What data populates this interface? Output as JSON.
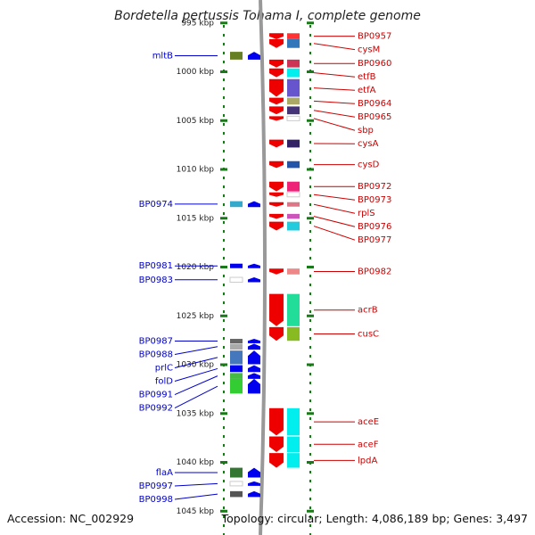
{
  "title": "Bordetella pertussis Tohama I, complete genome",
  "footer": {
    "accession": "Accession: NC_002929",
    "summary": "Topology: circular; Length: 4,086,189 bp; Genes: 3,497"
  },
  "colors": {
    "left_label": "#0000cc",
    "right_label": "#cc0000",
    "tick": "#1a7a1a",
    "backbone": "#999999"
  },
  "scale": {
    "unit": "kbp",
    "ticks": [
      {
        "kbp": 995,
        "label": "995 kbp"
      },
      {
        "kbp": 1000,
        "label": "1000 kbp"
      },
      {
        "kbp": 1005,
        "label": "1005 kbp"
      },
      {
        "kbp": 1010,
        "label": "1010 kbp"
      },
      {
        "kbp": 1015,
        "label": "1015 kbp"
      },
      {
        "kbp": 1020,
        "label": "1020 kbp"
      },
      {
        "kbp": 1025,
        "label": "1025 kbp"
      },
      {
        "kbp": 1030,
        "label": "1030 kbp"
      },
      {
        "kbp": 1035,
        "label": "1035 kbp"
      },
      {
        "kbp": 1040,
        "label": "1040 kbp"
      },
      {
        "kbp": 1045,
        "label": "1045 kbp"
      }
    ]
  },
  "left_genes": [
    {
      "name": "mltB",
      "start": 998.0,
      "end": 998.8,
      "color": "#667f22"
    },
    {
      "name": "BP0974",
      "start": 1013.3,
      "end": 1013.9,
      "color": "#33aacc"
    },
    {
      "name": "BP0981",
      "start": 1019.7,
      "end": 1020.0,
      "color": "#0000ee"
    },
    {
      "name": "BP0983",
      "start": 1021.1,
      "end": 1021.6,
      "color": "#ffffff"
    },
    {
      "name": "BP0987",
      "start": 1027.4,
      "end": 1027.7,
      "color": "#666666"
    },
    {
      "name": "BP0988",
      "start": 1027.9,
      "end": 1028.5,
      "color": "#aaaaaa"
    },
    {
      "name": "prlC",
      "start": 1028.6,
      "end": 1030.0,
      "color": "#4477bb"
    },
    {
      "name": "folD",
      "start": 1030.1,
      "end": 1030.8,
      "color": "#0000ee"
    },
    {
      "name": "BP0991",
      "start": 1030.9,
      "end": 1031.5,
      "color": "#44bb44"
    },
    {
      "name": "BP0992",
      "start": 1031.5,
      "end": 1033.0,
      "color": "#33cc33"
    },
    {
      "name": "flaA",
      "start": 1040.6,
      "end": 1041.6,
      "color": "#337733"
    },
    {
      "name": "BP0997",
      "start": 1042.0,
      "end": 1042.3,
      "color": "#ffffff"
    },
    {
      "name": "BP0998",
      "start": 1043.0,
      "end": 1043.6,
      "color": "#555555"
    }
  ],
  "right_genes": [
    {
      "name": "BP0957",
      "start": 996.1,
      "end": 996.7,
      "color": "#ff3333"
    },
    {
      "name": "cysM",
      "start": 996.7,
      "end": 997.6,
      "color": "#3377bb"
    },
    {
      "name": "BP0960",
      "start": 998.8,
      "end": 999.6,
      "color": "#cc3355"
    },
    {
      "name": "etfB",
      "start": 999.7,
      "end": 1000.6,
      "color": "#00eeee"
    },
    {
      "name": "etfA",
      "start": 1000.8,
      "end": 1002.6,
      "color": "#6655cc"
    },
    {
      "name": "BP0964",
      "start": 1002.7,
      "end": 1003.4,
      "color": "#aaaa66"
    },
    {
      "name": "BP0965",
      "start": 1003.6,
      "end": 1004.4,
      "color": "#443377"
    },
    {
      "name": "sbp",
      "start": 1004.6,
      "end": 1004.7,
      "color": "#ffffff"
    },
    {
      "name": "cysA",
      "start": 1007.0,
      "end": 1007.8,
      "color": "#332266"
    },
    {
      "name": "cysD",
      "start": 1009.2,
      "end": 1009.9,
      "color": "#2255aa"
    },
    {
      "name": "BP0972",
      "start": 1011.3,
      "end": 1012.3,
      "color": "#ee2277"
    },
    {
      "name": "BP0973",
      "start": 1012.4,
      "end": 1012.6,
      "color": "#ffffff"
    },
    {
      "name": "rplS",
      "start": 1013.4,
      "end": 1013.7,
      "color": "#dd7788"
    },
    {
      "name": "BP0976",
      "start": 1014.6,
      "end": 1015.1,
      "color": "#cc55bb"
    },
    {
      "name": "BP0977",
      "start": 1015.4,
      "end": 1016.3,
      "color": "#22ccdd"
    },
    {
      "name": "BP0982",
      "start": 1020.2,
      "end": 1020.8,
      "color": "#ee8888"
    },
    {
      "name": "acrB",
      "start": 1022.8,
      "end": 1026.1,
      "color": "#22dd99"
    },
    {
      "name": "cusC",
      "start": 1026.2,
      "end": 1027.6,
      "color": "#88bb22"
    },
    {
      "name": "aceE",
      "start": 1034.5,
      "end": 1037.3,
      "color": "#00eeee"
    },
    {
      "name": "aceF",
      "start": 1037.4,
      "end": 1039.0,
      "color": "#00eeee"
    },
    {
      "name": "lpdA",
      "start": 1039.1,
      "end": 1040.6,
      "color": "#00eeee"
    }
  ]
}
